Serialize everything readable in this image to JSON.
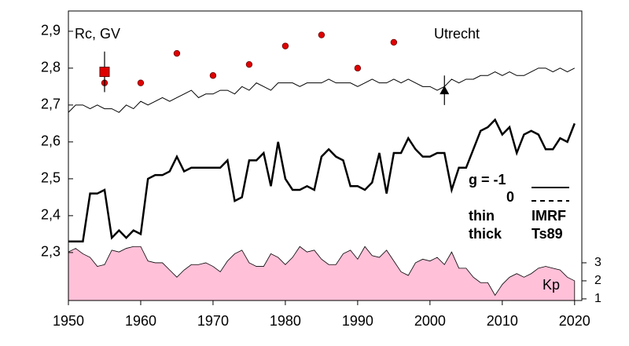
{
  "chart_data": {
    "type": "line",
    "x": [
      1950,
      1951,
      1952,
      1953,
      1954,
      1955,
      1956,
      1957,
      1958,
      1959,
      1960,
      1961,
      1962,
      1963,
      1964,
      1965,
      1966,
      1967,
      1968,
      1969,
      1970,
      1971,
      1972,
      1973,
      1974,
      1975,
      1976,
      1977,
      1978,
      1979,
      1980,
      1981,
      1982,
      1983,
      1984,
      1985,
      1986,
      1987,
      1988,
      1989,
      1990,
      1991,
      1992,
      1993,
      1994,
      1995,
      1996,
      1997,
      1998,
      1999,
      2000,
      2001,
      2002,
      2003,
      2004,
      2005,
      2006,
      2007,
      2008,
      2009,
      2010,
      2011,
      2012,
      2013,
      2014,
      2015,
      2016,
      2017,
      2018,
      2019,
      2020
    ],
    "series": [
      {
        "color": "#000000",
        "width": 1,
        "values": [
          2.68,
          2.7,
          2.7,
          2.69,
          2.7,
          2.69,
          2.69,
          2.68,
          2.7,
          2.69,
          2.71,
          2.7,
          2.71,
          2.72,
          2.71,
          2.72,
          2.73,
          2.74,
          2.72,
          2.73,
          2.73,
          2.74,
          2.74,
          2.73,
          2.75,
          2.74,
          2.76,
          2.75,
          2.74,
          2.76,
          2.76,
          2.76,
          2.75,
          2.76,
          2.76,
          2.76,
          2.77,
          2.76,
          2.76,
          2.76,
          2.75,
          2.76,
          2.77,
          2.76,
          2.76,
          2.77,
          2.76,
          2.77,
          2.76,
          2.75,
          2.75,
          2.74,
          2.75,
          2.77,
          2.76,
          2.77,
          2.77,
          2.78,
          2.78,
          2.79,
          2.78,
          2.79,
          2.78,
          2.78,
          2.79,
          2.8,
          2.8,
          2.79,
          2.8,
          2.79,
          2.8
        ]
      },
      {
        "color": "#000000",
        "width": 2.5,
        "values": [
          2.33,
          2.33,
          2.33,
          2.46,
          2.46,
          2.47,
          2.34,
          2.36,
          2.34,
          2.36,
          2.35,
          2.5,
          2.51,
          2.51,
          2.52,
          2.56,
          2.52,
          2.53,
          2.53,
          2.53,
          2.53,
          2.53,
          2.55,
          2.44,
          2.45,
          2.55,
          2.55,
          2.57,
          2.48,
          2.6,
          2.5,
          2.47,
          2.47,
          2.48,
          2.47,
          2.56,
          2.58,
          2.56,
          2.55,
          2.48,
          2.48,
          2.47,
          2.49,
          2.57,
          2.46,
          2.57,
          2.57,
          2.61,
          2.58,
          2.56,
          2.56,
          2.57,
          2.57,
          2.47,
          2.53,
          2.53,
          2.58,
          2.63,
          2.64,
          2.66,
          2.62,
          2.64,
          2.57,
          2.62,
          2.63,
          2.62,
          2.58,
          2.58,
          2.61,
          2.6,
          2.65
        ]
      },
      {
        "name": "Kp",
        "axis": "y2",
        "area": true,
        "color": "#ffc0d8",
        "values": [
          3.6,
          3.8,
          3.5,
          3.3,
          2.8,
          2.9,
          3.7,
          3.6,
          3.8,
          3.9,
          3.9,
          3.1,
          3.0,
          3.0,
          2.6,
          2.2,
          2.6,
          2.9,
          2.9,
          3.0,
          2.8,
          2.5,
          3.1,
          3.5,
          3.7,
          3.0,
          2.8,
          2.8,
          3.5,
          3.3,
          2.9,
          3.3,
          3.9,
          3.6,
          3.7,
          3.2,
          2.9,
          2.9,
          3.5,
          3.7,
          3.2,
          3.9,
          3.4,
          3.3,
          3.7,
          3.1,
          2.5,
          2.3,
          3.0,
          3.2,
          3.1,
          3.3,
          2.9,
          3.6,
          2.7,
          2.7,
          2.2,
          1.9,
          1.9,
          1.2,
          1.8,
          2.2,
          2.4,
          2.2,
          2.4,
          2.7,
          2.8,
          2.7,
          2.6,
          2.2,
          2.0
        ]
      }
    ],
    "points": {
      "color": "#e00000",
      "x": [
        1955,
        1960,
        1965,
        1970,
        1975,
        1980,
        1985,
        1990,
        1995
      ],
      "values": [
        2.76,
        2.76,
        2.84,
        2.78,
        2.81,
        2.86,
        2.89,
        2.8,
        2.87
      ]
    },
    "square": {
      "color": "#e00000",
      "x": 1955,
      "value": 2.79,
      "error": 0.055
    },
    "triangle": {
      "color": "#000000",
      "x": 2002,
      "value": 2.74,
      "error": 0.04
    },
    "ylabel": "Rc, GV",
    "station": "Utrecht",
    "legend": {
      "g": "g  = -1",
      "zero": "0",
      "thin": "thin",
      "thick": "thick",
      "imrf": "IMRF",
      "ts89": "Ts89"
    },
    "xlim": [
      1950,
      2021
    ],
    "xticks": [
      1950,
      1960,
      1970,
      1980,
      1990,
      2000,
      2010,
      2020
    ],
    "ylim": [
      2.17,
      2.955
    ],
    "yticks": [
      {
        "value": 2.3,
        "label": "2,3"
      },
      {
        "value": 2.4,
        "label": "2,4"
      },
      {
        "value": 2.5,
        "label": "2,5"
      },
      {
        "value": 2.6,
        "label": "2,6"
      },
      {
        "value": 2.7,
        "label": "2,7"
      },
      {
        "value": 2.8,
        "label": "2,8"
      },
      {
        "value": 2.9,
        "label": "2,9"
      }
    ],
    "y2lim": [
      0.91,
      16.96
    ],
    "y2ticks": [
      1,
      2,
      3
    ]
  }
}
